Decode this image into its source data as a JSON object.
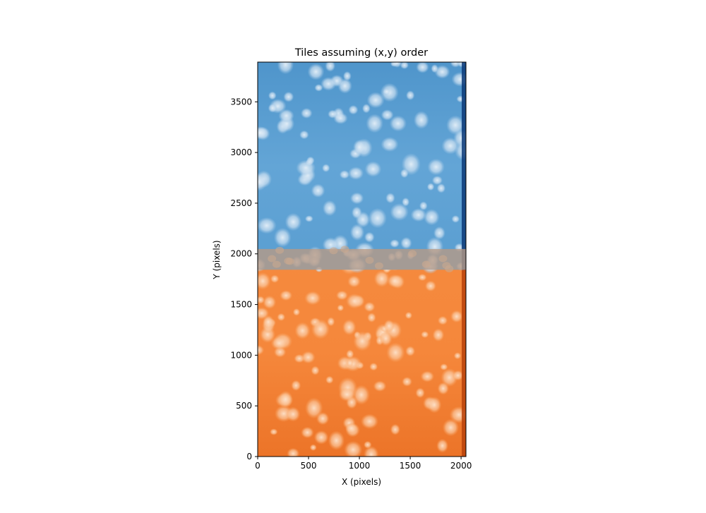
{
  "chart_data": {
    "type": "heatmap",
    "title": "Tiles assuming (x,y) order",
    "xlabel": "X (pixels)",
    "ylabel": "Y (pixels)",
    "xlim": [
      0,
      2048
    ],
    "ylim": [
      0,
      3892
    ],
    "x_ticks": [
      0,
      500,
      1000,
      1500,
      2000
    ],
    "y_ticks": [
      0,
      500,
      1000,
      1500,
      2000,
      2500,
      3000,
      3500
    ],
    "tiles": [
      {
        "name": "",
        "colormap": "Blues",
        "x_range": [
          0,
          2048
        ],
        "y_range": [
          1844,
          3892
        ]
      },
      {
        "name": "",
        "colormap": "Oranges",
        "x_range": [
          0,
          2048
        ],
        "y_range": [
          0,
          2048
        ]
      }
    ],
    "overlap_y_range": [
      1844,
      2048
    ],
    "colors": {
      "blue_tile": "#5a9fd2",
      "orange_tile": "#f47f31",
      "overlap": "#b89a84"
    }
  }
}
